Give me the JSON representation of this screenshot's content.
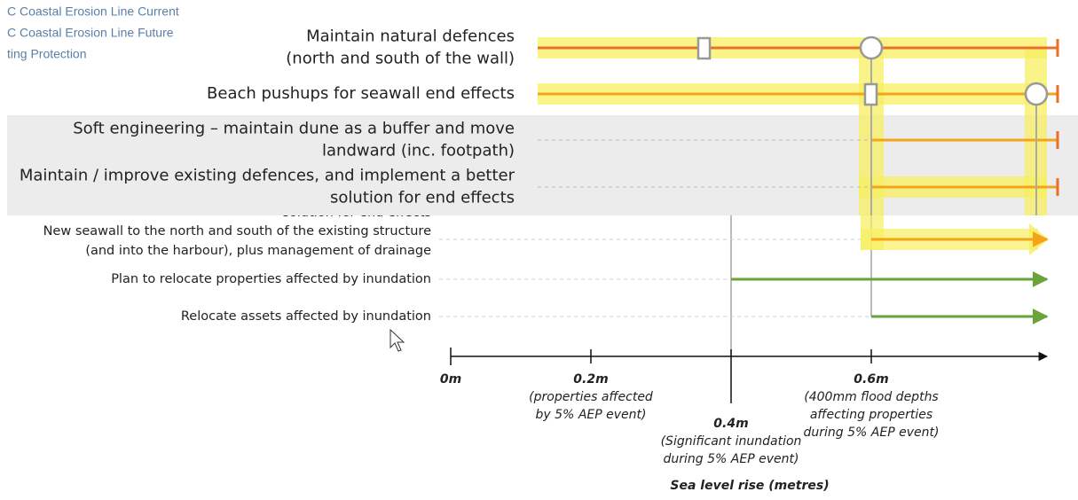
{
  "legend": [
    "C Coastal Erosion Line Current",
    "C Coastal Erosion Line Future",
    "ting Protection"
  ],
  "zoom_rows": [
    {
      "lines": [
        "Maintain natural defences",
        "(north and south of the wall)"
      ]
    },
    {
      "lines": [
        "Beach pushups for seawall end effects"
      ]
    },
    {
      "lines": [
        "Soft engineering – maintain dune as a buffer and move",
        "landward (inc. footpath)"
      ]
    },
    {
      "lines": [
        "Maintain / improve existing defences, and implement a better",
        "solution for end effects"
      ]
    }
  ],
  "hidden_fragment": "solution for end effects",
  "rows": [
    {
      "lines": [
        "New seawall to the north and south of the existing structure",
        "(and into the harbour), plus management of drainage"
      ]
    },
    {
      "lines": [
        "Plan to relocate properties affected by inundation"
      ]
    },
    {
      "lines": [
        "Relocate assets affected by inundation"
      ]
    }
  ],
  "axis": {
    "title": "Sea level rise (metres)",
    "ticks": [
      {
        "label": "0m",
        "note": []
      },
      {
        "label": "0.2m",
        "note": [
          "(properties affected",
          "by 5% AEP event)"
        ]
      },
      {
        "label": "0.4m",
        "note": [
          "(Significant inundation",
          "during 5% AEP event)"
        ]
      },
      {
        "label": "0.6m",
        "note": [
          "(400mm flood depths",
          "affecting properties",
          "during 5% AEP event)"
        ]
      }
    ]
  }
}
